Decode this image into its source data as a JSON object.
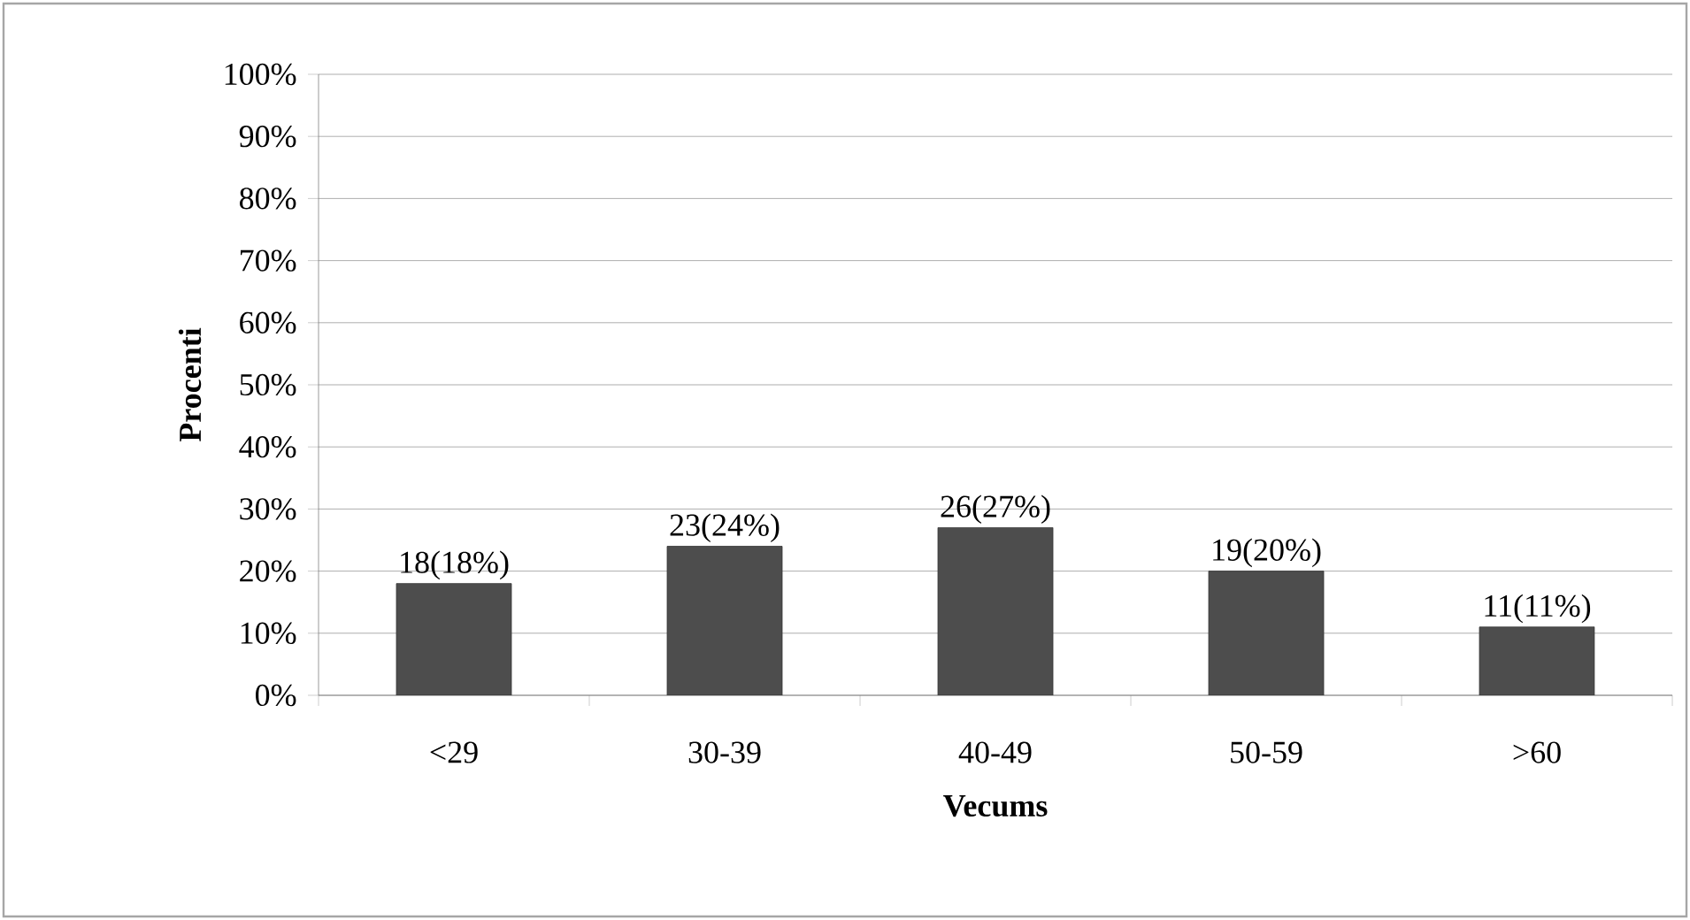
{
  "chart_data": {
    "type": "bar",
    "xlabel": "Vecums",
    "ylabel": "Procenti",
    "categories": [
      "<29",
      "30-39",
      "40-49",
      "50-59",
      ">60"
    ],
    "values": [
      18,
      24,
      27,
      20,
      11
    ],
    "value_labels": [
      "18(18%)",
      "23(24%)",
      "26(27%)",
      "19(20%)",
      "11(11%)"
    ],
    "color": "#4d4d4d",
    "grid": "y",
    "ylim": [
      0,
      100
    ],
    "yticks": [
      {
        "value": 0,
        "label": "0%"
      },
      {
        "value": 10,
        "label": "10%"
      },
      {
        "value": 20,
        "label": "20%"
      },
      {
        "value": 30,
        "label": "30%"
      },
      {
        "value": 40,
        "label": "40%"
      },
      {
        "value": 50,
        "label": "50%"
      },
      {
        "value": 60,
        "label": "60%"
      },
      {
        "value": 70,
        "label": "70%"
      },
      {
        "value": 80,
        "label": "80%"
      },
      {
        "value": 90,
        "label": "90%"
      },
      {
        "value": 100,
        "label": "100%"
      }
    ]
  }
}
